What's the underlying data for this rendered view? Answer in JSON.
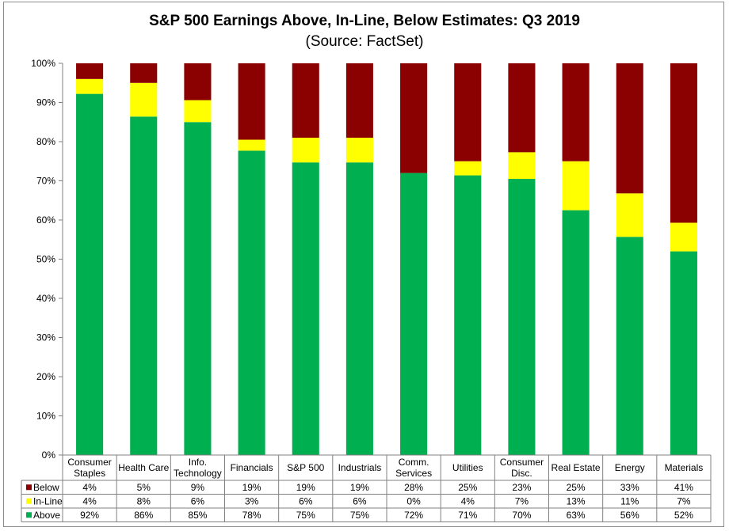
{
  "chart_data": {
    "type": "bar",
    "stacked": true,
    "title": "S&P 500 Earnings Above, In-Line, Below Estimates: Q3 2019",
    "subtitle": "(Source: FactSet)",
    "categories": [
      [
        "Consumer",
        "Staples"
      ],
      [
        "Health Care"
      ],
      [
        "Info.",
        "Technology"
      ],
      [
        "Financials"
      ],
      [
        "S&P 500"
      ],
      [
        "Industrials"
      ],
      [
        "Comm.",
        "Services"
      ],
      [
        "Utilities"
      ],
      [
        "Consumer",
        "Disc."
      ],
      [
        "Real Estate"
      ],
      [
        "Energy"
      ],
      [
        "Materials"
      ]
    ],
    "series": [
      {
        "name": "Below",
        "color": "#8b0000",
        "values": [
          4,
          5,
          9,
          19,
          19,
          19,
          28,
          25,
          23,
          25,
          33,
          41
        ]
      },
      {
        "name": "In-Line",
        "color": "#ffff00",
        "values": [
          4,
          8,
          6,
          3,
          6,
          6,
          0,
          4,
          7,
          13,
          11,
          7
        ]
      },
      {
        "name": "Above",
        "color": "#00b050",
        "values": [
          92,
          86,
          85,
          78,
          75,
          75,
          72,
          71,
          70,
          63,
          56,
          52
        ]
      }
    ],
    "bar_tops": {
      "In-Line": [
        96.0,
        95.0,
        90.6,
        80.5,
        81.0,
        81.0,
        72.0,
        75.0,
        77.3,
        75.0,
        66.8,
        59.3
      ],
      "Above": [
        92.2,
        86.4,
        85.0,
        77.7,
        74.7,
        74.7,
        72.0,
        71.4,
        70.5,
        62.5,
        55.7,
        52.0
      ]
    },
    "ylim": [
      0,
      100
    ],
    "yticks": [
      "0%",
      "10%",
      "20%",
      "30%",
      "40%",
      "50%",
      "60%",
      "70%",
      "80%",
      "90%",
      "100%"
    ],
    "value_suffix": "%",
    "grid": false,
    "legend": "data-table"
  }
}
